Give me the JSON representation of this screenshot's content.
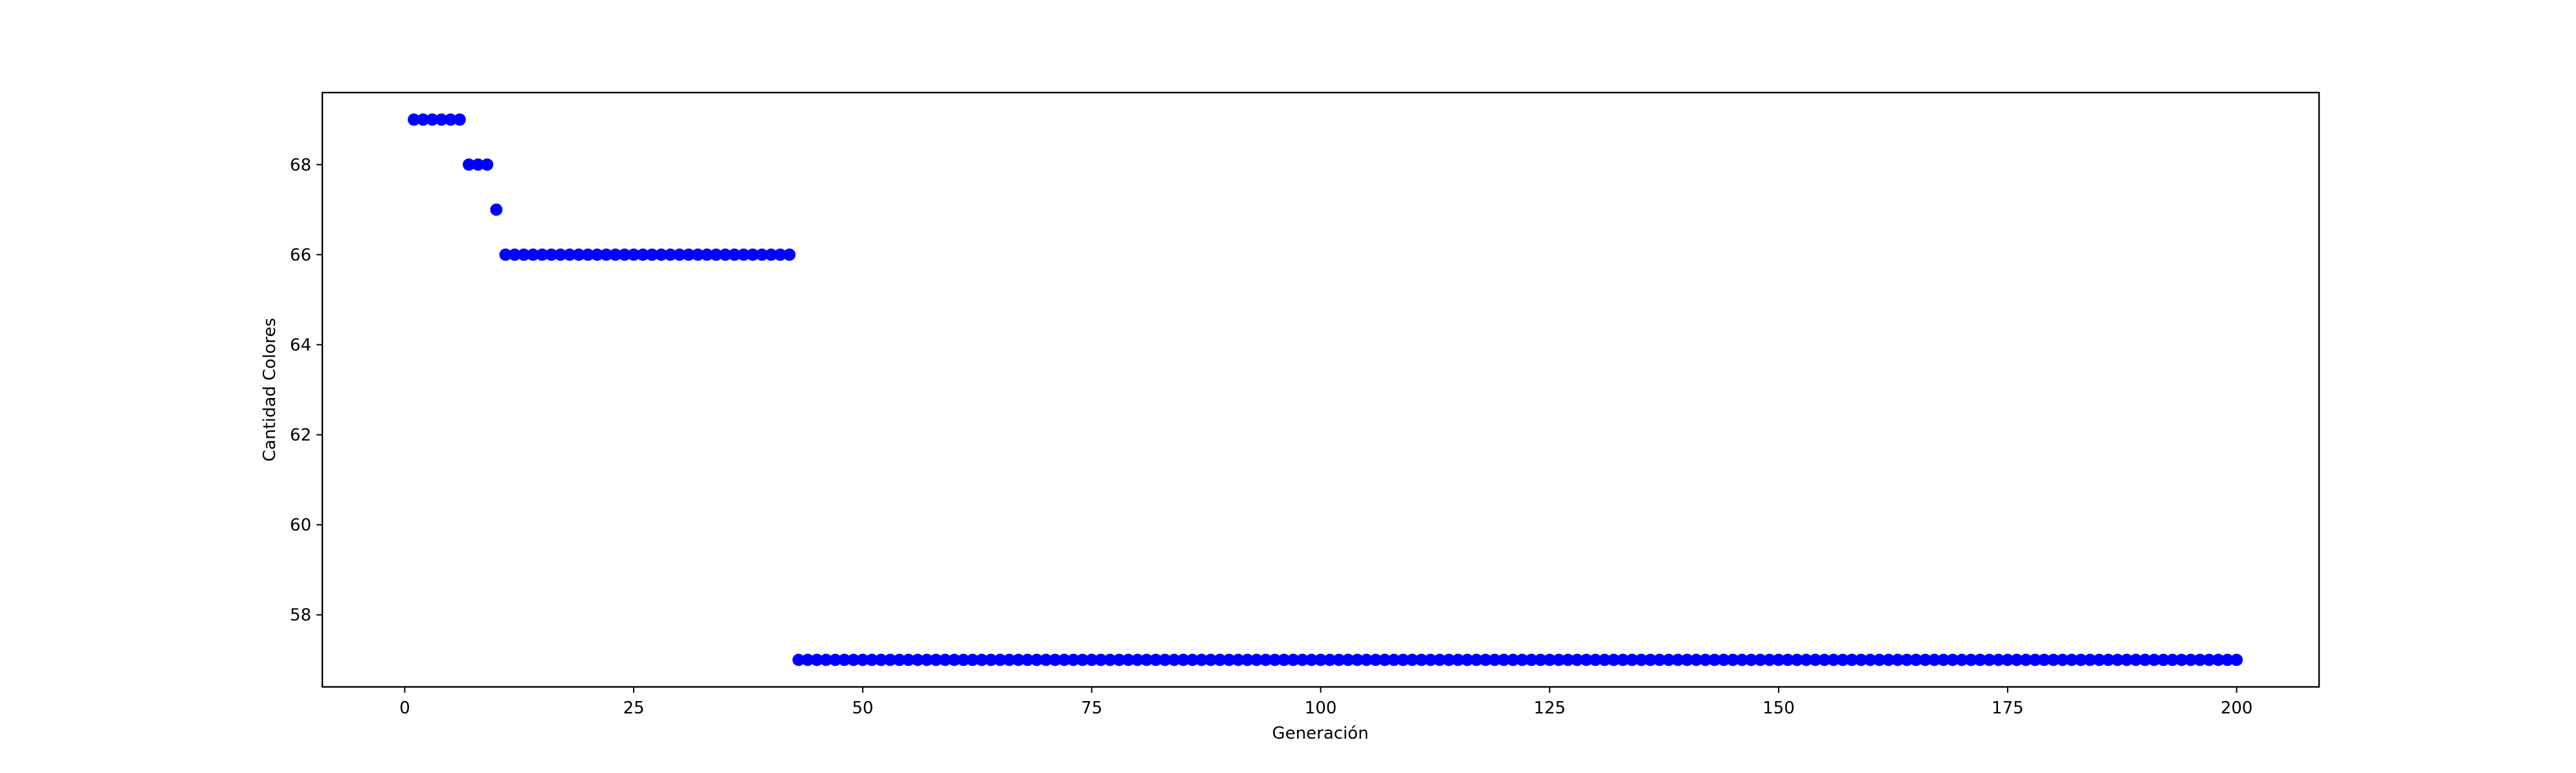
{
  "chart_data": {
    "type": "scatter",
    "title": "",
    "xlabel": "Generación",
    "ylabel": "Cantidad Colores",
    "xlim": [
      -9,
      209
    ],
    "ylim": [
      56.4,
      69.6
    ],
    "xticks": [
      0,
      25,
      50,
      75,
      100,
      125,
      150,
      175,
      200
    ],
    "yticks": [
      58,
      60,
      62,
      64,
      66,
      68
    ],
    "grid": false,
    "marker_color": "#0000ff",
    "series": [
      {
        "segments": [
          {
            "x_start": 1,
            "x_end": 6,
            "y": 69
          },
          {
            "x_start": 7,
            "x_end": 9,
            "y": 68
          },
          {
            "x_start": 10,
            "x_end": 10,
            "y": 67
          },
          {
            "x_start": 11,
            "x_end": 42,
            "y": 66
          },
          {
            "x_start": 43,
            "x_end": 200,
            "y": 57
          }
        ]
      }
    ]
  }
}
